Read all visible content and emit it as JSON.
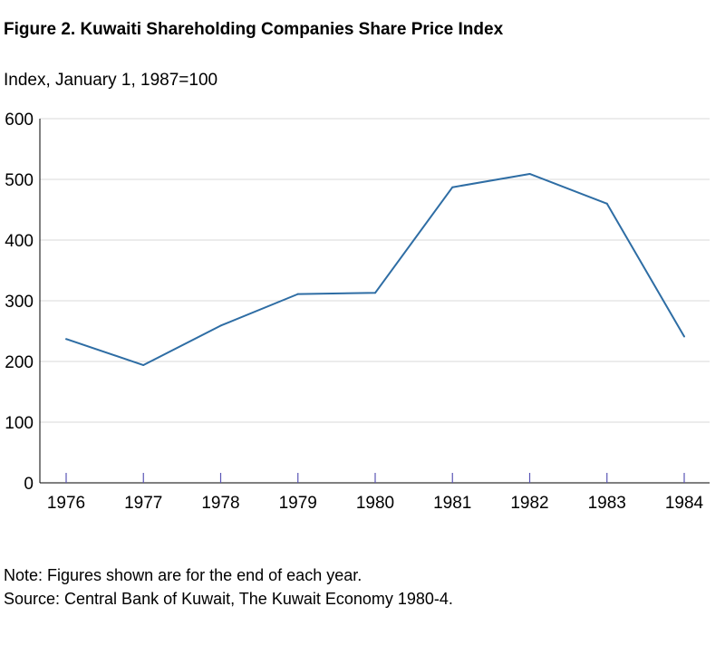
{
  "figure_title": "Figure 2. Kuwaiti Shareholding Companies Share Price Index",
  "notes": {
    "note": "Note: Figures shown are for the end of each year.",
    "source": "Source: Central Bank of Kuwait, The Kuwait Economy 1980-4."
  },
  "colors": {
    "line": "#2e6da4",
    "grid": "#d9d9d9",
    "axis": "#000000",
    "tick": "#5a55b5"
  },
  "chart_data": {
    "type": "line",
    "title": "Figure 2. Kuwaiti Shareholding Companies Share Price Index",
    "ylabel": "Index, January 1, 1987=100",
    "xlabel": "",
    "categories": [
      "1976",
      "1977",
      "1978",
      "1979",
      "1980",
      "1981",
      "1982",
      "1983",
      "1984"
    ],
    "series": [
      {
        "values": [
          237,
          194,
          259,
          311,
          313,
          487,
          509,
          460,
          241
        ]
      }
    ],
    "ylim": [
      0,
      600
    ],
    "yticks": [
      "0",
      "100",
      "200",
      "300",
      "400",
      "500",
      "600"
    ],
    "grid": true
  }
}
